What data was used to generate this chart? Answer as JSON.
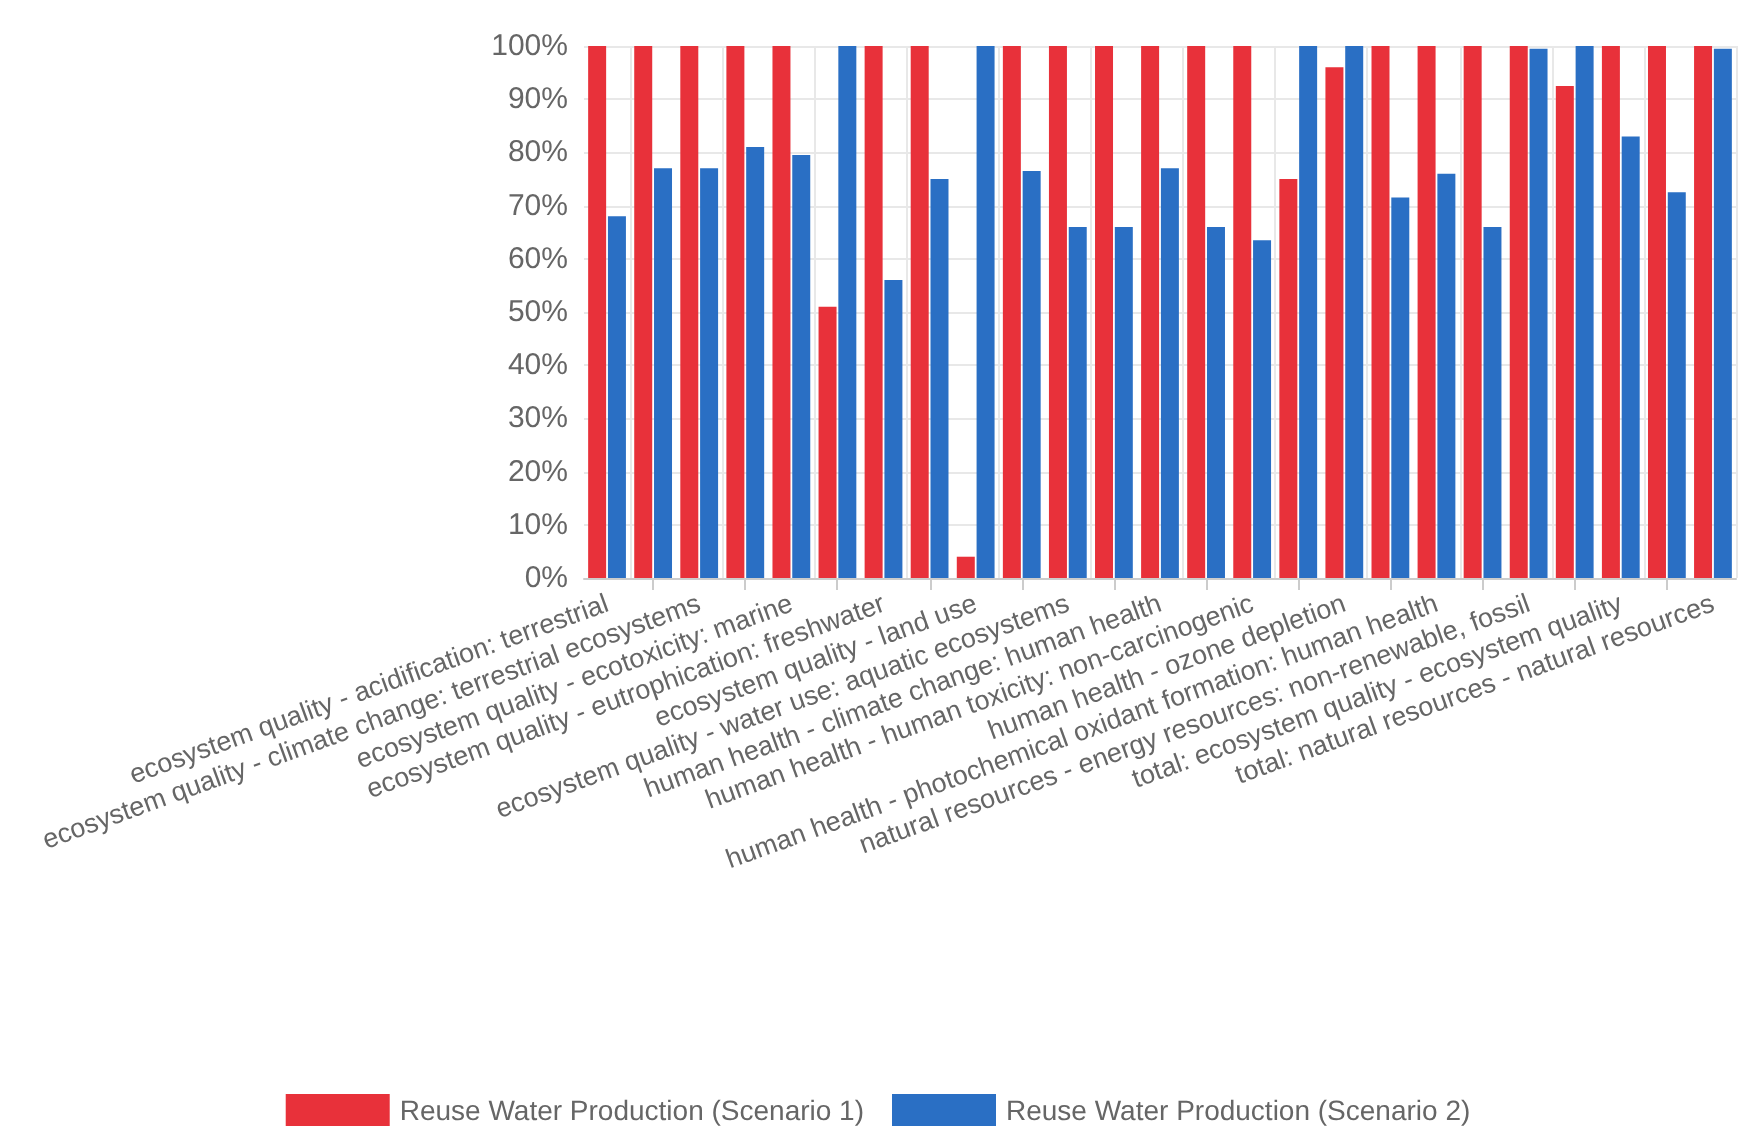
{
  "chart_data": {
    "type": "bar",
    "categories": [
      "ecosystem quality - acidification: terrestrial",
      null,
      "ecosystem quality - climate change: terrestrial ecosystems",
      null,
      "ecosystem quality - ecotoxicity: marine",
      null,
      "ecosystem quality - eutrophication: freshwater",
      null,
      "ecosystem quality - land use",
      null,
      "ecosystem quality - water use: aquatic ecosystems",
      null,
      "human health - climate change: human health",
      null,
      "human health - human toxicity: non-carcinogenic",
      null,
      "human health - ozone depletion",
      null,
      "human health - photochemical oxidant formation: human health",
      null,
      "natural resources - energy resources: non-renewable, fossil",
      null,
      "total: ecosystem quality - ecosystem quality",
      null,
      "total: natural resources - natural resources"
    ],
    "series": [
      {
        "name": "Reuse Water Production (Scenario 1)",
        "color": "#e8313a",
        "values": [
          100,
          100,
          100,
          100,
          100,
          51,
          100,
          100,
          4,
          100,
          100,
          100,
          100,
          100,
          100,
          75,
          96,
          100,
          100,
          100,
          100,
          92.5,
          100,
          100,
          100
        ]
      },
      {
        "name": "Reuse Water Production (Scenario 2)",
        "color": "#2a6fc4",
        "values": [
          68,
          77,
          77,
          81,
          79.5,
          100,
          56,
          75,
          100,
          76.5,
          66,
          66,
          77,
          66,
          63.5,
          100,
          100,
          71.5,
          76,
          66,
          99.5,
          100,
          83,
          72.5,
          99.5
        ]
      }
    ],
    "ylim": [
      0,
      100
    ],
    "yticks": [
      {
        "value": 0,
        "label": "0%"
      },
      {
        "value": 10,
        "label": "10%"
      },
      {
        "value": 20,
        "label": "20%"
      },
      {
        "value": 30,
        "label": "30%"
      },
      {
        "value": 40,
        "label": "40%"
      },
      {
        "value": 50,
        "label": "50%"
      },
      {
        "value": 60,
        "label": "60%"
      },
      {
        "value": 70,
        "label": "70%"
      },
      {
        "value": 80,
        "label": "80%"
      },
      {
        "value": 90,
        "label": "90%"
      },
      {
        "value": 100,
        "label": "100%"
      }
    ],
    "grid": true,
    "legend": "bottom"
  }
}
